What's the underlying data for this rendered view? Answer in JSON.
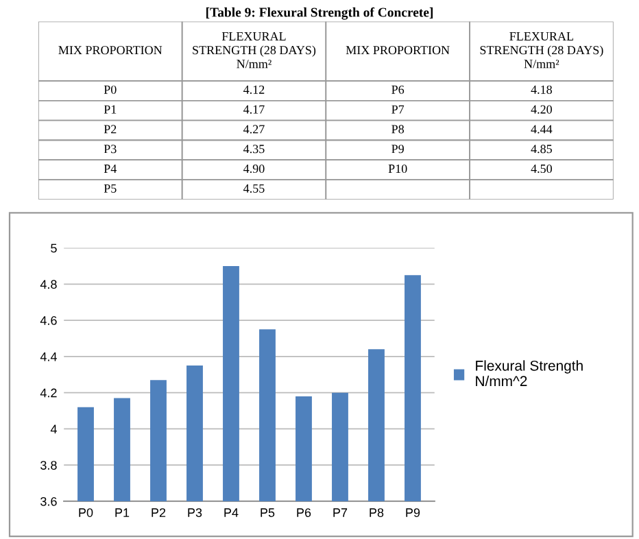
{
  "chart_data": [
    {
      "type": "other",
      "title": "[Table 9: Flexural Strength of Concrete]",
      "annotations": [
        "MIX PROPORTION",
        "FLEXURAL\nSTRENGTH (28 DAYS)\nN/mm²",
        "MIX PROPORTION",
        "FLEXURAL\nSTRENGTH (28 DAYS)\nN/mm²",
        "P0",
        "4.12",
        "P6",
        "4.18",
        "P1",
        "4.17",
        "P7",
        "4.20",
        "P2",
        "4.27",
        "P8",
        "4.44",
        "P3",
        "4.35",
        "P9",
        "4.85",
        "P4",
        "4.90",
        "P10",
        "4.50",
        "P5",
        "4.55"
      ]
    },
    {
      "type": "bar",
      "categories": [
        "P0",
        "P1",
        "P2",
        "P3",
        "P4",
        "P5",
        "P6",
        "P7",
        "P8",
        "P9"
      ],
      "series": [
        {
          "name": "Flexural Strength\nN/mm^2",
          "color": "#4f81bd",
          "values": [
            4.12,
            4.17,
            4.27,
            4.35,
            4.9,
            4.55,
            4.18,
            4.2,
            4.44,
            4.85
          ]
        }
      ],
      "ylim": [
        3.6,
        5
      ],
      "yticks": [
        3.6,
        3.8,
        4,
        4.2,
        4.4,
        4.6,
        4.8,
        5
      ],
      "grid": "y",
      "legend": "right"
    }
  ]
}
